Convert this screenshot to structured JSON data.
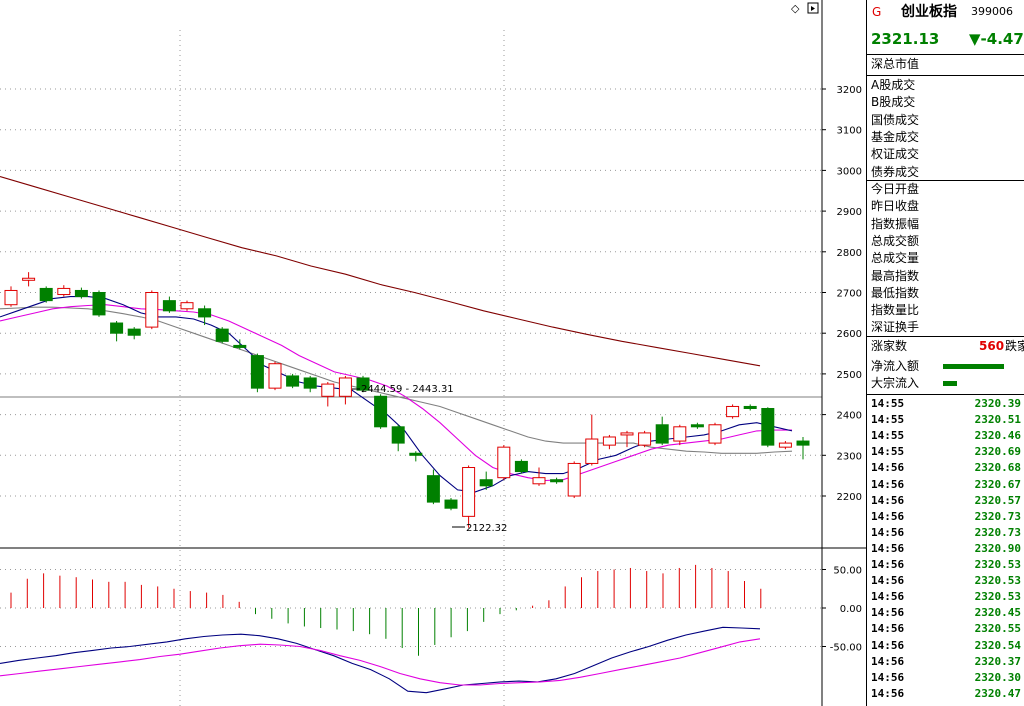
{
  "header": {
    "g_label": "G",
    "index_name": "创业板指",
    "code": "399006",
    "price": "2321.13",
    "change": "▼-4.47"
  },
  "stats": {
    "market_cap": "深总市值",
    "trade_labels": [
      "A股成交",
      "B股成交",
      "国债成交",
      "基金成交",
      "权证成交",
      "债券成交"
    ],
    "day_labels": [
      "今日开盘",
      "昨日收盘",
      "指数振幅",
      "总成交额",
      "总成交量",
      "最高指数",
      "最低指数",
      "指数量比",
      "深证换手"
    ],
    "rise_label": "涨家数",
    "rise_value": "560",
    "fall_label": "跌家",
    "net_inflow_label": "净流入额",
    "block_inflow_label": "大宗流入",
    "net_inflow_level": 0.95,
    "block_inflow_level": 0.22
  },
  "ticks": [
    {
      "time": "14:55",
      "price": "2320.39"
    },
    {
      "time": "14:55",
      "price": "2320.51"
    },
    {
      "time": "14:55",
      "price": "2320.46"
    },
    {
      "time": "14:55",
      "price": "2320.69"
    },
    {
      "time": "14:56",
      "price": "2320.68"
    },
    {
      "time": "14:56",
      "price": "2320.67"
    },
    {
      "time": "14:56",
      "price": "2320.57"
    },
    {
      "time": "14:56",
      "price": "2320.73"
    },
    {
      "time": "14:56",
      "price": "2320.73"
    },
    {
      "time": "14:56",
      "price": "2320.90"
    },
    {
      "time": "14:56",
      "price": "2320.53"
    },
    {
      "time": "14:56",
      "price": "2320.53"
    },
    {
      "time": "14:56",
      "price": "2320.53"
    },
    {
      "time": "14:56",
      "price": "2320.45"
    },
    {
      "time": "14:56",
      "price": "2320.55"
    },
    {
      "time": "14:56",
      "price": "2320.54"
    },
    {
      "time": "14:56",
      "price": "2320.37"
    },
    {
      "time": "14:56",
      "price": "2320.30"
    },
    {
      "time": "14:56",
      "price": "2320.47"
    }
  ],
  "colors": {
    "up": "#e00000",
    "down": "#008000",
    "ma_long": "#800000",
    "ma5": "#000080",
    "ma10": "#e000e0",
    "ma20": "#808080"
  },
  "chart_data": {
    "type": "candlestick",
    "price_axis": {
      "ylim": [
        2110,
        3240
      ],
      "ticks": [
        2200,
        2300,
        2400,
        2500,
        2600,
        2700,
        2800,
        2900,
        3000,
        3100,
        3200
      ]
    },
    "macd_axis": {
      "ylim": [
        -120,
        75
      ],
      "ticks": [
        50.0,
        0.0,
        -50.0
      ]
    },
    "annotations": {
      "range_label": "2444.59 - 2443.31",
      "low_label": "2122.32"
    },
    "candles": [
      {
        "o": 2670,
        "c": 2705,
        "h": 2715,
        "l": 2665
      },
      {
        "o": 2730,
        "c": 2735,
        "h": 2750,
        "l": 2715
      },
      {
        "o": 2710,
        "c": 2680,
        "h": 2715,
        "l": 2675
      },
      {
        "o": 2695,
        "c": 2710,
        "h": 2718,
        "l": 2690
      },
      {
        "o": 2705,
        "c": 2690,
        "h": 2712,
        "l": 2685
      },
      {
        "o": 2700,
        "c": 2645,
        "h": 2705,
        "l": 2640
      },
      {
        "o": 2625,
        "c": 2600,
        "h": 2630,
        "l": 2580
      },
      {
        "o": 2610,
        "c": 2595,
        "h": 2615,
        "l": 2585
      },
      {
        "o": 2615,
        "c": 2700,
        "h": 2705,
        "l": 2610
      },
      {
        "o": 2680,
        "c": 2655,
        "h": 2690,
        "l": 2650
      },
      {
        "o": 2660,
        "c": 2675,
        "h": 2680,
        "l": 2655
      },
      {
        "o": 2660,
        "c": 2640,
        "h": 2668,
        "l": 2620
      },
      {
        "o": 2610,
        "c": 2580,
        "h": 2615,
        "l": 2575
      },
      {
        "o": 2570,
        "c": 2565,
        "h": 2585,
        "l": 2560
      },
      {
        "o": 2545,
        "c": 2465,
        "h": 2550,
        "l": 2455
      },
      {
        "o": 2465,
        "c": 2525,
        "h": 2530,
        "l": 2460
      },
      {
        "o": 2495,
        "c": 2470,
        "h": 2500,
        "l": 2465
      },
      {
        "o": 2490,
        "c": 2465,
        "h": 2495,
        "l": 2455
      },
      {
        "o": 2445,
        "c": 2475,
        "h": 2480,
        "l": 2420
      },
      {
        "o": 2445,
        "c": 2490,
        "h": 2495,
        "l": 2425
      },
      {
        "o": 2490,
        "c": 2460,
        "h": 2495,
        "l": 2455
      },
      {
        "o": 2445,
        "c": 2370,
        "h": 2450,
        "l": 2365
      },
      {
        "o": 2370,
        "c": 2330,
        "h": 2375,
        "l": 2310
      },
      {
        "o": 2305,
        "c": 2300,
        "h": 2310,
        "l": 2285
      },
      {
        "o": 2250,
        "c": 2185,
        "h": 2265,
        "l": 2180
      },
      {
        "o": 2190,
        "c": 2170,
        "h": 2195,
        "l": 2165
      },
      {
        "o": 2150,
        "c": 2270,
        "h": 2275,
        "l": 2122
      },
      {
        "o": 2240,
        "c": 2225,
        "h": 2260,
        "l": 2215
      },
      {
        "o": 2245,
        "c": 2320,
        "h": 2325,
        "l": 2240
      },
      {
        "o": 2285,
        "c": 2260,
        "h": 2290,
        "l": 2255
      },
      {
        "o": 2230,
        "c": 2245,
        "h": 2270,
        "l": 2225
      },
      {
        "o": 2240,
        "c": 2235,
        "h": 2245,
        "l": 2230
      },
      {
        "o": 2200,
        "c": 2280,
        "h": 2285,
        "l": 2195
      },
      {
        "o": 2280,
        "c": 2340,
        "h": 2400,
        "l": 2275
      },
      {
        "o": 2325,
        "c": 2345,
        "h": 2350,
        "l": 2315
      },
      {
        "o": 2350,
        "c": 2355,
        "h": 2360,
        "l": 2320
      },
      {
        "o": 2325,
        "c": 2355,
        "h": 2360,
        "l": 2320
      },
      {
        "o": 2375,
        "c": 2330,
        "h": 2395,
        "l": 2325
      },
      {
        "o": 2335,
        "c": 2370,
        "h": 2375,
        "l": 2325
      },
      {
        "o": 2375,
        "c": 2370,
        "h": 2380,
        "l": 2365
      },
      {
        "o": 2330,
        "c": 2375,
        "h": 2380,
        "l": 2325
      },
      {
        "o": 2395,
        "c": 2420,
        "h": 2425,
        "l": 2390
      },
      {
        "o": 2420,
        "c": 2415,
        "h": 2425,
        "l": 2410
      },
      {
        "o": 2415,
        "c": 2325,
        "h": 2418,
        "l": 2320
      },
      {
        "o": 2320,
        "c": 2330,
        "h": 2335,
        "l": 2315
      },
      {
        "o": 2335,
        "c": 2325,
        "h": 2345,
        "l": 2290
      }
    ],
    "ma_long": [
      2985,
      2960,
      2935,
      2910,
      2885,
      2860,
      2835,
      2810,
      2790,
      2765,
      2745,
      2720,
      2700,
      2678,
      2655,
      2635,
      2615,
      2597,
      2580,
      2565,
      2550,
      2535,
      2520
    ],
    "ma5": [
      2640,
      2655,
      2670,
      2685,
      2690,
      2690,
      2685,
      2670,
      2650,
      2640,
      2640,
      2635,
      2620,
      2600,
      2560,
      2520,
      2500,
      2480,
      2470,
      2465,
      2460,
      2430,
      2400,
      2360,
      2300,
      2250,
      2215,
      2210,
      2225,
      2250,
      2260,
      2255,
      2255,
      2270,
      2290,
      2300,
      2320,
      2335,
      2340,
      2345,
      2350,
      2360,
      2375,
      2380,
      2370,
      2360
    ],
    "ma10": [
      2630,
      2640,
      2650,
      2660,
      2665,
      2668,
      2670,
      2665,
      2660,
      2658,
      2655,
      2652,
      2645,
      2630,
      2610,
      2590,
      2570,
      2545,
      2525,
      2505,
      2495,
      2485,
      2470,
      2445,
      2415,
      2380,
      2340,
      2300,
      2270,
      2255,
      2245,
      2238,
      2240,
      2255,
      2270,
      2285,
      2300,
      2315,
      2325,
      2330,
      2335,
      2340,
      2350,
      2360,
      2362,
      2362
    ],
    "ma20": [
      2660,
      2662,
      2664,
      2664,
      2662,
      2660,
      2655,
      2648,
      2640,
      2630,
      2615,
      2600,
      2585,
      2570,
      2555,
      2540,
      2525,
      2510,
      2495,
      2480,
      2470,
      2460,
      2450,
      2440,
      2430,
      2420,
      2405,
      2390,
      2375,
      2360,
      2345,
      2335,
      2330,
      2330,
      2330,
      2330,
      2330,
      2320,
      2315,
      2310,
      2308,
      2305,
      2305,
      2305,
      2308,
      2310
    ],
    "macd_hist": [
      20,
      38,
      45,
      42,
      40,
      37,
      34,
      34,
      30,
      28,
      25,
      22,
      20,
      17,
      8,
      -8,
      -14,
      -20,
      -24,
      -26,
      -28,
      -30,
      -34,
      -40,
      -52,
      -62,
      -48,
      -38,
      -30,
      -18,
      -8,
      -3,
      3,
      10,
      28,
      40,
      48,
      50,
      52,
      48,
      45,
      52,
      56,
      52,
      48,
      35,
      25
    ],
    "dif": [
      -72,
      -68,
      -65,
      -62,
      -58,
      -55,
      -52,
      -50,
      -47,
      -44,
      -40,
      -37,
      -35,
      -34,
      -36,
      -40,
      -46,
      -54,
      -62,
      -72,
      -80,
      -92,
      -108,
      -110,
      -105,
      -100,
      -98,
      -96,
      -95,
      -96,
      -92,
      -85,
      -75,
      -65,
      -57,
      -50,
      -42,
      -35,
      -30,
      -25,
      -26,
      -27
    ],
    "dea": [
      -88,
      -85,
      -82,
      -79,
      -76,
      -73,
      -70,
      -67,
      -63,
      -60,
      -56,
      -52,
      -49,
      -47,
      -48,
      -50,
      -55,
      -62,
      -68,
      -76,
      -85,
      -92,
      -97,
      -100,
      -100,
      -98,
      -97,
      -96,
      -94,
      -90,
      -85,
      -80,
      -75,
      -70,
      -65,
      -58,
      -51,
      -44,
      -40
    ]
  }
}
